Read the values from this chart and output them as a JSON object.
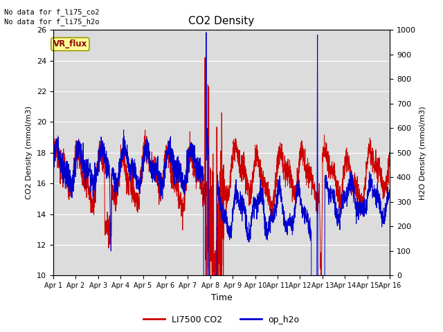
{
  "title": "CO2 Density",
  "xlabel": "Time",
  "ylabel_left": "CO2 Density (mmol/m3)",
  "ylabel_right": "H2O Density (mmol/m3)",
  "ylim_left": [
    10,
    26
  ],
  "ylim_right": [
    0,
    1000
  ],
  "yticks_left": [
    10,
    12,
    14,
    16,
    18,
    20,
    22,
    24,
    26
  ],
  "yticks_right": [
    0,
    100,
    200,
    300,
    400,
    500,
    600,
    700,
    800,
    900,
    1000
  ],
  "xtick_labels": [
    "Apr 1",
    "Apr 2",
    "Apr 3",
    "Apr 4",
    "Apr 5",
    "Apr 6",
    "Apr 7",
    "Apr 8",
    "Apr 9",
    "Apr 10",
    "Apr 11",
    "Apr 12",
    "Apr 13",
    "Apr 14",
    "Apr 15",
    "Apr 16"
  ],
  "annotation_text1": "No data for f_li75_co2",
  "annotation_text2": "No data for f_li75_h2o",
  "vr_flux_label": "VR_flux",
  "legend_entries": [
    "LI7500 CO2",
    "op_h2o"
  ],
  "legend_colors": [
    "#cc0000",
    "#0000cc"
  ],
  "co2_color": "#cc0000",
  "h2o_color": "#0000cc",
  "bg_color": "#dcdcdc",
  "n_points": 3000
}
